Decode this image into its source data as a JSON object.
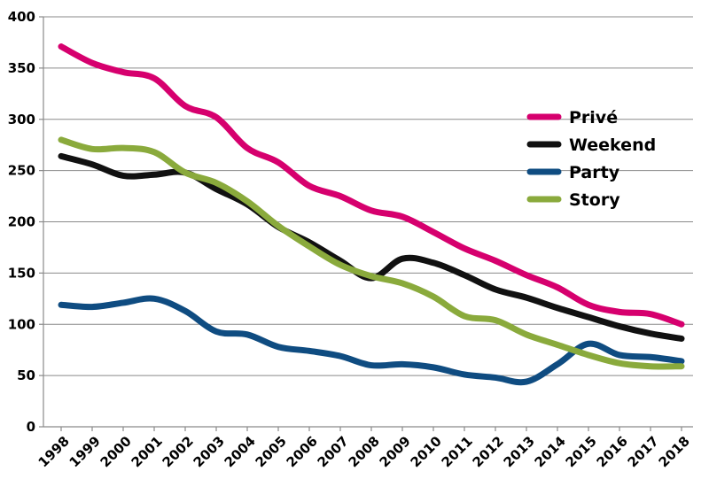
{
  "chart_data": {
    "type": "line",
    "title": "",
    "xlabel": "",
    "ylabel": "",
    "ylim": [
      0,
      400
    ],
    "yticks": [
      0,
      50,
      100,
      150,
      200,
      250,
      300,
      350,
      400
    ],
    "grid": true,
    "legend_position": "right",
    "categories": [
      "1998",
      "1999",
      "2000",
      "2001",
      "2002",
      "2003",
      "2004",
      "2005",
      "2006",
      "2007",
      "2008",
      "2009",
      "2010",
      "2011",
      "2012",
      "2013",
      "2014",
      "2015",
      "2016",
      "2017",
      "2018"
    ],
    "series": [
      {
        "name": "Privé",
        "color": "#d6006e",
        "values": [
          371,
          355,
          346,
          340,
          313,
          302,
          272,
          258,
          235,
          225,
          211,
          205,
          190,
          174,
          162,
          148,
          136,
          119,
          112,
          110,
          100
        ]
      },
      {
        "name": "Weekend",
        "color": "#111111",
        "values": [
          264,
          256,
          245,
          246,
          248,
          232,
          217,
          195,
          180,
          162,
          145,
          164,
          160,
          148,
          134,
          126,
          116,
          107,
          98,
          91,
          86
        ]
      },
      {
        "name": "Party",
        "color": "#0f4c81",
        "values": [
          119,
          117,
          121,
          125,
          113,
          93,
          90,
          78,
          74,
          69,
          60,
          61,
          58,
          51,
          48,
          44,
          61,
          81,
          70,
          68,
          64
        ]
      },
      {
        "name": "Story",
        "color": "#8aaa3c",
        "values": [
          280,
          271,
          272,
          268,
          248,
          238,
          220,
          196,
          176,
          158,
          147,
          140,
          127,
          108,
          104,
          90,
          80,
          70,
          62,
          59,
          59
        ]
      }
    ]
  }
}
